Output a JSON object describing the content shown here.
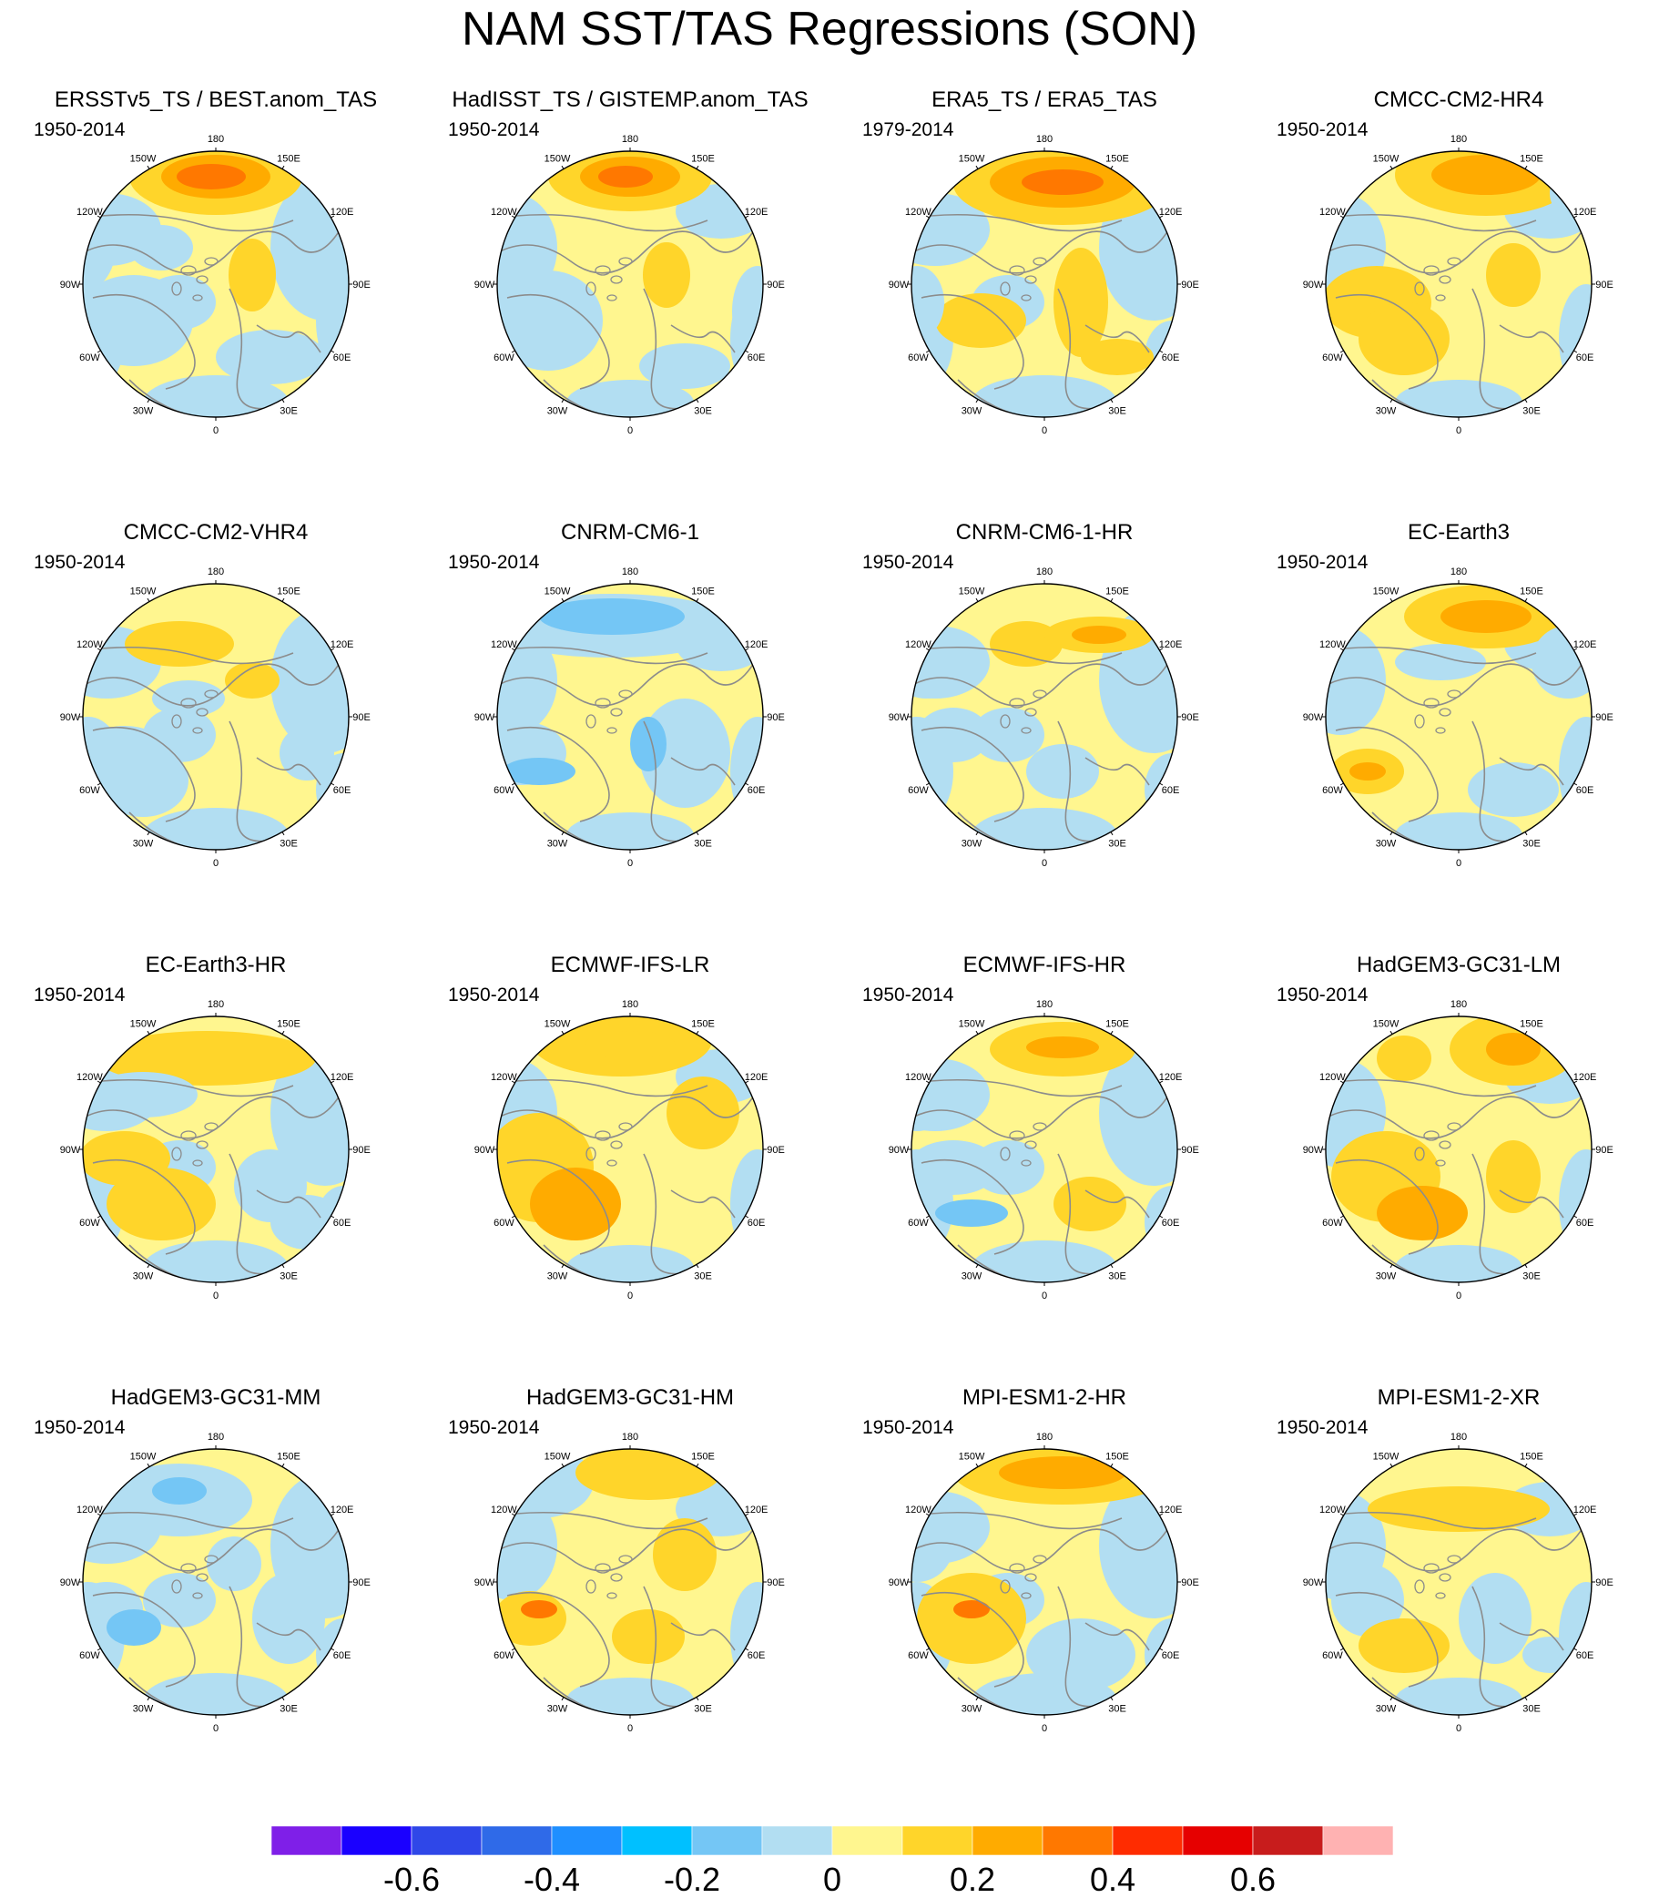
{
  "title": "NAM SST/TAS Regressions (SON)",
  "lon_labels": [
    "180",
    "150E",
    "120E",
    "90E",
    "60E",
    "30E",
    "0",
    "30W",
    "60W",
    "90W",
    "120W",
    "150W"
  ],
  "colors": {
    "levels": [
      "#7f1fe8",
      "#1a00ff",
      "#2f47e8",
      "#2f6ae8",
      "#1f8fff",
      "#00c0ff",
      "#74c6f5",
      "#b2def2",
      "#fff68f",
      "#ffd52a",
      "#ffab00",
      "#ff7800",
      "#ff2c00",
      "#e60000",
      "#c81c1c",
      "#ffb2b2"
    ],
    "coastline": "#8c8c8c",
    "land_dark": "#6e6e6e"
  },
  "colorbar": {
    "labels": [
      "-0.6",
      "-0.4",
      "-0.2",
      "0",
      "0.2",
      "0.4",
      "0.6"
    ]
  },
  "panels": [
    {
      "title": "ERSSTv5_TS / BEST.anom_TAS",
      "period": "1950-2014"
    },
    {
      "title": "HadISST_TS / GISTEMP.anom_TAS",
      "period": "1950-2014"
    },
    {
      "title": "ERA5_TS / ERA5_TAS",
      "period": "1979-2014"
    },
    {
      "title": "CMCC-CM2-HR4",
      "period": "1950-2014"
    },
    {
      "title": "CMCC-CM2-VHR4",
      "period": "1950-2014"
    },
    {
      "title": "CNRM-CM6-1",
      "period": "1950-2014"
    },
    {
      "title": "CNRM-CM6-1-HR",
      "period": "1950-2014"
    },
    {
      "title": "EC-Earth3",
      "period": "1950-2014"
    },
    {
      "title": "EC-Earth3-HR",
      "period": "1950-2014"
    },
    {
      "title": "ECMWF-IFS-LR",
      "period": "1950-2014"
    },
    {
      "title": "ECMWF-IFS-HR",
      "period": "1950-2014"
    },
    {
      "title": "HadGEM3-GC31-LM",
      "period": "1950-2014"
    },
    {
      "title": "HadGEM3-GC31-MM",
      "period": "1950-2014"
    },
    {
      "title": "HadGEM3-GC31-HM",
      "period": "1950-2014"
    },
    {
      "title": "MPI-ESM1-2-HR",
      "period": "1950-2014"
    },
    {
      "title": "MPI-ESM1-2-XR",
      "period": "1950-2014"
    }
  ]
}
